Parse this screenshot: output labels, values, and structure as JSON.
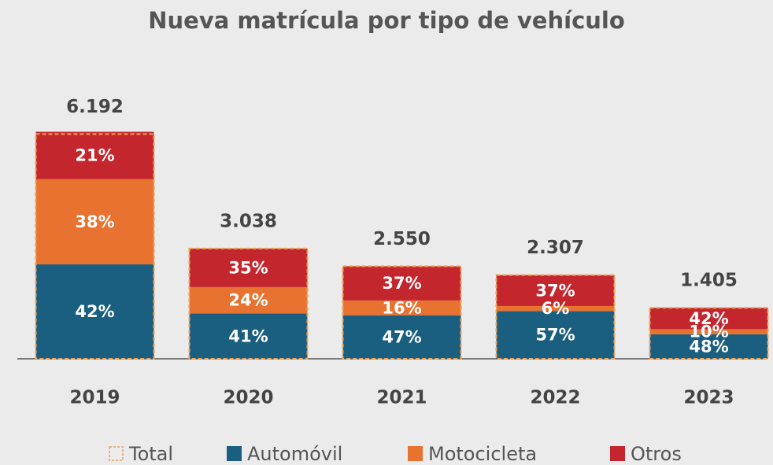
{
  "chart_data": {
    "type": "stacked_share_bar",
    "title": "Nueva matrícula por tipo de vehículo",
    "categories": [
      "2019",
      "2020",
      "2021",
      "2022",
      "2023"
    ],
    "series": [
      {
        "name": "Total",
        "color": "#f0a050",
        "values": [
          6192,
          3038,
          2550,
          2307,
          1405
        ],
        "value_labels": [
          "6.192",
          "3.038",
          "2.550",
          "2.307",
          "1.405"
        ]
      },
      {
        "name": "Automóvil",
        "color": "#1a5e80",
        "values": [
          42,
          41,
          47,
          57,
          48
        ],
        "value_labels": [
          "42%",
          "41%",
          "47%",
          "57%",
          "48%"
        ]
      },
      {
        "name": "Motocicleta",
        "color": "#e87230",
        "values": [
          38,
          24,
          16,
          6,
          10
        ],
        "value_labels": [
          "38%",
          "24%",
          "16%",
          "6%",
          "10%"
        ]
      },
      {
        "name": "Otros",
        "color": "#c4262e",
        "values": [
          21,
          35,
          37,
          37,
          42
        ],
        "value_labels": [
          "21%",
          "35%",
          "37%",
          "37%",
          "42%"
        ]
      }
    ]
  }
}
